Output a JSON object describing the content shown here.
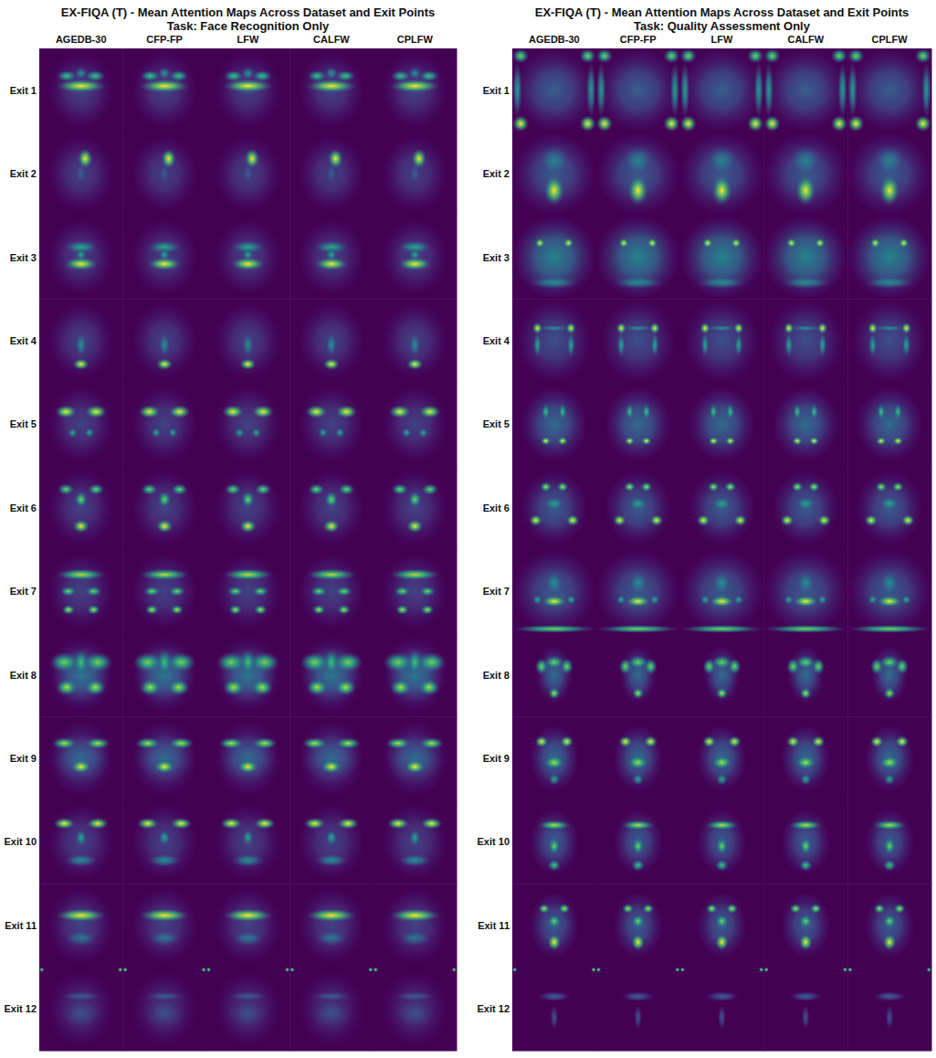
{
  "chart_data": {
    "type": "attention_map_grid",
    "panels": [
      {
        "title": "EX-FIQA (T) - Mean Attention Maps Across Dataset and Exit Points",
        "subtitle": "Task: Face Recognition Only",
        "columns": [
          "AGEDB-30",
          "CFP-FP",
          "LFW",
          "CALFW",
          "CPLFW"
        ],
        "rows": [
          "Exit 1",
          "Exit 2",
          "Exit 3",
          "Exit 4",
          "Exit 5",
          "Exit 6",
          "Exit 7",
          "Exit 8",
          "Exit 9",
          "Exit 10",
          "Exit 11",
          "Exit 12"
        ],
        "maps": [
          [
            [
              0.5,
              0.5,
              0.4,
              0.46,
              0.2
            ],
            [
              0.5,
              0.3,
              0.08,
              0.08,
              0.5
            ],
            [
              0.33,
              0.33,
              0.12,
              0.07,
              0.7
            ],
            [
              0.67,
              0.33,
              0.12,
              0.07,
              0.7
            ],
            [
              0.5,
              0.45,
              0.3,
              0.08,
              1
            ]
          ],
          [
            [
              0.5,
              0.5,
              0.4,
              0.46,
              0.2
            ],
            [
              0.5,
              0.5,
              0.08,
              0.15,
              0.3
            ],
            [
              0.55,
              0.32,
              0.09,
              0.12,
              1
            ]
          ],
          [
            [
              0.5,
              0.5,
              0.4,
              0.46,
              0.2
            ],
            [
              0.5,
              0.38,
              0.2,
              0.08,
              0.6
            ],
            [
              0.5,
              0.47,
              0.07,
              0.07,
              0.6
            ],
            [
              0.5,
              0.58,
              0.2,
              0.08,
              1
            ]
          ],
          [
            [
              0.5,
              0.5,
              0.4,
              0.46,
              0.2
            ],
            [
              0.5,
              0.55,
              0.07,
              0.15,
              0.5
            ],
            [
              0.5,
              0.78,
              0.1,
              0.07,
              1
            ]
          ],
          [
            [
              0.5,
              0.5,
              0.4,
              0.46,
              0.2
            ],
            [
              0.4,
              0.6,
              0.06,
              0.06,
              0.6
            ],
            [
              0.6,
              0.6,
              0.06,
              0.06,
              0.6
            ],
            [
              0.32,
              0.35,
              0.13,
              0.08,
              1
            ],
            [
              0.68,
              0.35,
              0.13,
              0.08,
              1
            ]
          ],
          [
            [
              0.5,
              0.5,
              0.4,
              0.46,
              0.2
            ],
            [
              0.32,
              0.28,
              0.1,
              0.07,
              0.8
            ],
            [
              0.68,
              0.28,
              0.1,
              0.07,
              0.8
            ],
            [
              0.5,
              0.4,
              0.08,
              0.1,
              0.8
            ],
            [
              0.5,
              0.72,
              0.1,
              0.08,
              1
            ]
          ],
          [
            [
              0.5,
              0.5,
              0.4,
              0.46,
              0.2
            ],
            [
              0.5,
              0.3,
              0.3,
              0.07,
              0.9
            ],
            [
              0.35,
              0.5,
              0.1,
              0.06,
              0.8
            ],
            [
              0.65,
              0.5,
              0.1,
              0.06,
              0.8
            ],
            [
              0.35,
              0.72,
              0.08,
              0.06,
              0.9
            ],
            [
              0.65,
              0.72,
              0.08,
              0.06,
              0.9
            ]
          ],
          [
            [
              0.5,
              0.5,
              0.4,
              0.46,
              0.2
            ],
            [
              0.5,
              0.5,
              0.35,
              0.35,
              0.4
            ],
            [
              0.5,
              0.35,
              0.1,
              0.15,
              0.7
            ],
            [
              0.3,
              0.35,
              0.18,
              0.12,
              0.8
            ],
            [
              0.7,
              0.35,
              0.18,
              0.12,
              0.8
            ],
            [
              0.33,
              0.65,
              0.13,
              0.1,
              0.9
            ],
            [
              0.67,
              0.65,
              0.13,
              0.1,
              0.9
            ]
          ],
          [
            [
              0.5,
              0.5,
              0.4,
              0.46,
              0.2
            ],
            [
              0.5,
              0.5,
              0.35,
              0.3,
              0.35
            ],
            [
              0.3,
              0.32,
              0.15,
              0.07,
              0.9
            ],
            [
              0.7,
              0.32,
              0.15,
              0.07,
              0.9
            ],
            [
              0.5,
              0.6,
              0.12,
              0.08,
              1
            ]
          ],
          [
            [
              0.5,
              0.5,
              0.4,
              0.46,
              0.2
            ],
            [
              0.5,
              0.72,
              0.2,
              0.08,
              0.5
            ],
            [
              0.5,
              0.45,
              0.07,
              0.1,
              0.6
            ],
            [
              0.3,
              0.28,
              0.13,
              0.07,
              1
            ],
            [
              0.7,
              0.28,
              0.13,
              0.07,
              1
            ]
          ],
          [
            [
              0.5,
              0.5,
              0.4,
              0.46,
              0.2
            ],
            [
              0.5,
              0.65,
              0.2,
              0.1,
              0.4
            ],
            [
              0.5,
              0.38,
              0.3,
              0.08,
              1
            ]
          ],
          [
            [
              0.5,
              0.5,
              0.4,
              0.46,
              0.15
            ],
            [
              0.5,
              0.55,
              0.25,
              0.2,
              0.25
            ],
            [
              0.5,
              0.35,
              0.25,
              0.06,
              0.3
            ],
            [
              0.03,
              0.03,
              0.03,
              0.03,
              0.9
            ],
            [
              0.97,
              0.03,
              0.03,
              0.03,
              0.9
            ]
          ]
        ]
      },
      {
        "title": "EX-FIQA (T) - Mean Attention Maps Across Dataset and Exit Points",
        "subtitle": "Task: Quality Assessment Only",
        "columns": [
          "AGEDB-30",
          "CFP-FP",
          "LFW",
          "CALFW",
          "CPLFW"
        ],
        "rows": [
          "Exit 1",
          "Exit 2",
          "Exit 3",
          "Exit 4",
          "Exit 5",
          "Exit 6",
          "Exit 7",
          "Exit 8",
          "Exit 9",
          "Exit 10",
          "Exit 11",
          "Exit 12"
        ],
        "maps": [
          [
            [
              0.5,
              0.5,
              0.5,
              0.5,
              0.3
            ],
            [
              0.06,
              0.5,
              0.06,
              0.35,
              0.55
            ],
            [
              0.94,
              0.5,
              0.06,
              0.35,
              0.55
            ],
            [
              0.1,
              0.09,
              0.1,
              0.09,
              0.8
            ],
            [
              0.9,
              0.09,
              0.1,
              0.09,
              0.8
            ],
            [
              0.1,
              0.9,
              0.1,
              0.1,
              1
            ],
            [
              0.9,
              0.9,
              0.1,
              0.1,
              1
            ]
          ],
          [
            [
              0.5,
              0.5,
              0.5,
              0.5,
              0.3
            ],
            [
              0.5,
              0.35,
              0.2,
              0.2,
              0.45
            ],
            [
              0.5,
              0.7,
              0.12,
              0.18,
              1
            ]
          ],
          [
            [
              0.5,
              0.5,
              0.5,
              0.5,
              0.45
            ],
            [
              0.5,
              0.8,
              0.3,
              0.08,
              0.5
            ],
            [
              0.33,
              0.33,
              0.06,
              0.06,
              1
            ],
            [
              0.67,
              0.33,
              0.06,
              0.06,
              1
            ]
          ],
          [
            [
              0.5,
              0.5,
              0.45,
              0.5,
              0.25
            ],
            [
              0.5,
              0.35,
              0.2,
              0.04,
              0.5
            ],
            [
              0.3,
              0.55,
              0.05,
              0.15,
              0.6
            ],
            [
              0.7,
              0.55,
              0.05,
              0.15,
              0.6
            ],
            [
              0.3,
              0.35,
              0.06,
              0.07,
              1
            ],
            [
              0.7,
              0.35,
              0.06,
              0.07,
              1
            ]
          ],
          [
            [
              0.5,
              0.5,
              0.4,
              0.45,
              0.35
            ],
            [
              0.4,
              0.35,
              0.05,
              0.1,
              0.7
            ],
            [
              0.6,
              0.35,
              0.05,
              0.1,
              0.7
            ],
            [
              0.4,
              0.7,
              0.06,
              0.05,
              1
            ],
            [
              0.6,
              0.7,
              0.06,
              0.05,
              1
            ]
          ],
          [
            [
              0.5,
              0.5,
              0.4,
              0.45,
              0.3
            ],
            [
              0.5,
              0.45,
              0.12,
              0.08,
              0.6
            ],
            [
              0.4,
              0.25,
              0.07,
              0.06,
              0.9
            ],
            [
              0.6,
              0.25,
              0.07,
              0.06,
              0.9
            ],
            [
              0.28,
              0.65,
              0.08,
              0.07,
              1
            ],
            [
              0.72,
              0.65,
              0.08,
              0.07,
              1
            ]
          ],
          [
            [
              0.5,
              0.5,
              0.5,
              0.5,
              0.3
            ],
            [
              0.5,
              0.4,
              0.12,
              0.15,
              0.5
            ],
            [
              0.3,
              0.6,
              0.06,
              0.06,
              0.6
            ],
            [
              0.7,
              0.6,
              0.06,
              0.06,
              0.6
            ],
            [
              0.5,
              0.95,
              0.5,
              0.05,
              0.8
            ],
            [
              0.5,
              0.62,
              0.15,
              0.07,
              1
            ]
          ],
          [
            [
              0.5,
              0.5,
              0.22,
              0.35,
              0.35
            ],
            [
              0.35,
              0.4,
              0.08,
              0.1,
              0.8
            ],
            [
              0.65,
              0.4,
              0.08,
              0.1,
              0.8
            ],
            [
              0.5,
              0.35,
              0.12,
              0.08,
              0.8
            ],
            [
              0.5,
              0.72,
              0.07,
              0.07,
              0.9
            ]
          ],
          [
            [
              0.5,
              0.5,
              0.3,
              0.4,
              0.35
            ],
            [
              0.5,
              0.75,
              0.07,
              0.07,
              0.6
            ],
            [
              0.5,
              0.55,
              0.12,
              0.08,
              0.9
            ],
            [
              0.35,
              0.3,
              0.08,
              0.07,
              1
            ],
            [
              0.65,
              0.3,
              0.08,
              0.07,
              1
            ]
          ],
          [
            [
              0.5,
              0.5,
              0.3,
              0.4,
              0.3
            ],
            [
              0.5,
              0.78,
              0.08,
              0.07,
              0.7
            ],
            [
              0.5,
              0.55,
              0.07,
              0.1,
              0.8
            ],
            [
              0.5,
              0.3,
              0.2,
              0.06,
              0.9
            ]
          ],
          [
            [
              0.5,
              0.5,
              0.3,
              0.4,
              0.3
            ],
            [
              0.5,
              0.45,
              0.08,
              0.08,
              0.8
            ],
            [
              0.38,
              0.3,
              0.07,
              0.06,
              0.9
            ],
            [
              0.62,
              0.3,
              0.07,
              0.06,
              0.9
            ],
            [
              0.5,
              0.7,
              0.08,
              0.1,
              1
            ]
          ],
          [
            [
              0.5,
              0.6,
              0.05,
              0.15,
              0.25
            ],
            [
              0.5,
              0.35,
              0.2,
              0.06,
              0.3
            ],
            [
              0.03,
              0.03,
              0.03,
              0.03,
              0.9
            ],
            [
              0.97,
              0.03,
              0.03,
              0.03,
              0.9
            ]
          ]
        ]
      }
    ]
  }
}
